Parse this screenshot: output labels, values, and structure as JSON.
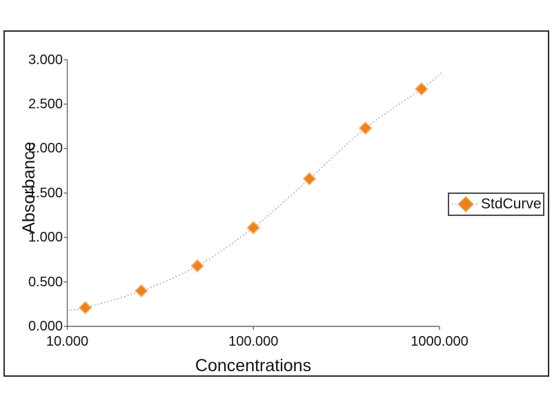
{
  "chart_data": {
    "type": "scatter",
    "title": "",
    "xlabel": "Concentrations",
    "ylabel": "Absorbance",
    "x_scale": "log10",
    "xlim": [
      10,
      1050
    ],
    "ylim": [
      0,
      3
    ],
    "grid": false,
    "x": [
      12.5,
      25,
      50,
      100,
      200,
      400,
      800
    ],
    "y": [
      0.21,
      0.4,
      0.68,
      1.11,
      1.66,
      2.23,
      2.67
    ],
    "x_ticks": [
      {
        "v": 10,
        "label": "10.000"
      },
      {
        "v": 100,
        "label": "100.000"
      },
      {
        "v": 1000,
        "label": "1000.000"
      }
    ],
    "y_ticks": [
      {
        "v": 0.0,
        "label": "0.000"
      },
      {
        "v": 0.5,
        "label": "0.500"
      },
      {
        "v": 1.0,
        "label": "1.000"
      },
      {
        "v": 1.5,
        "label": "1.500"
      },
      {
        "v": 2.0,
        "label": "2.000"
      },
      {
        "v": 2.5,
        "label": "2.500"
      },
      {
        "v": 3.0,
        "label": "3.000"
      }
    ],
    "legend": {
      "label": "StdCurve",
      "position": "right-middle"
    },
    "fit_curve": {
      "style": "dotted",
      "start": {
        "x": 10,
        "y": 0.18
      },
      "end": {
        "x": 1020,
        "y": 2.85
      }
    },
    "marker": {
      "shape": "diamond"
    },
    "colors": {
      "marker": "#E8831E",
      "marker_halo": "#F3A75C",
      "curve": "#999999",
      "axis": "#666666",
      "text": "#141414",
      "frame_border": "#2B2B2B",
      "background": "#FFFFFF"
    }
  }
}
